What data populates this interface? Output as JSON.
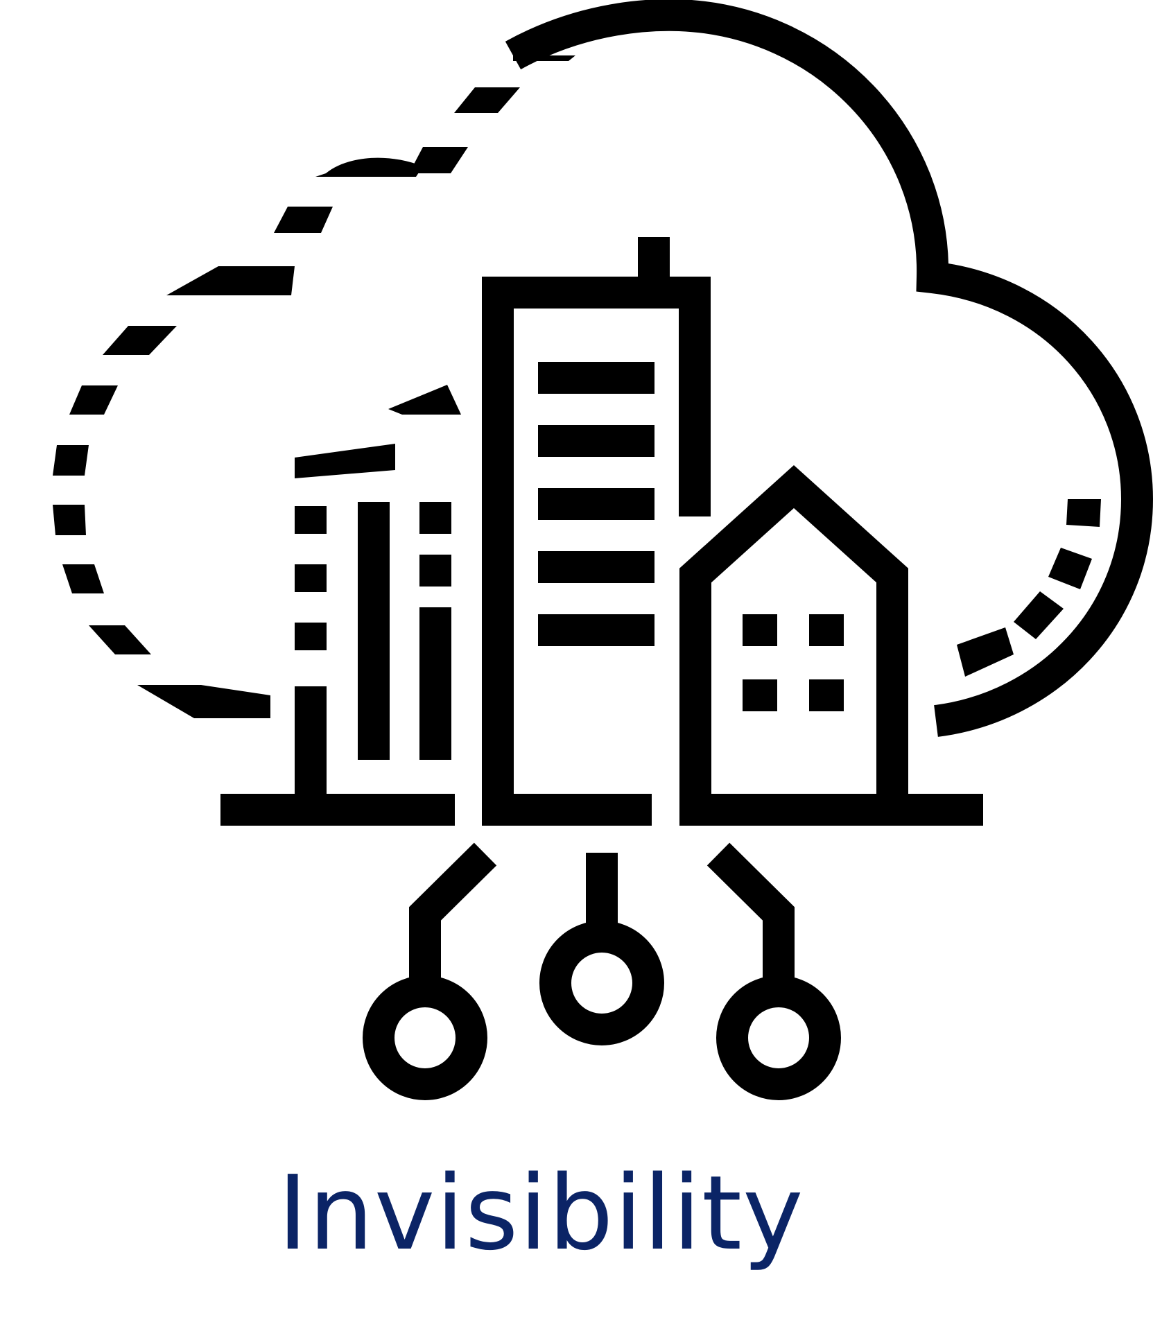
{
  "caption": {
    "text": "Invisibility",
    "color": "#0b2466"
  },
  "icon": {
    "name": "smart-city-cloud-icon",
    "stroke_color": "#000000",
    "parts": [
      "cloud-outline",
      "tall-tower",
      "left-building",
      "house",
      "circuit-nodes"
    ]
  }
}
